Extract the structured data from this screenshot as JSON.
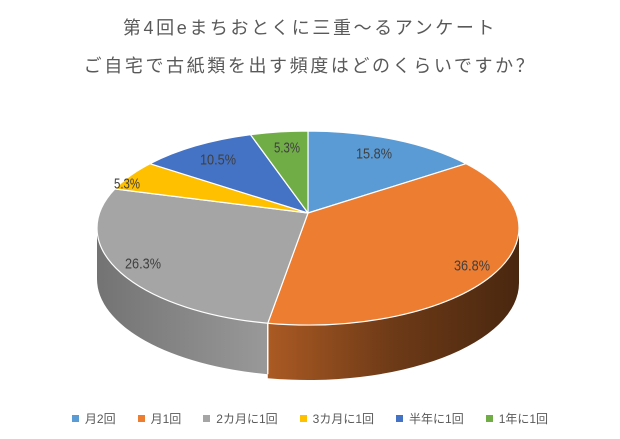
{
  "title": "第4回eまちおとくに三重～るアンケート",
  "subtitle": "ご自宅で古紙類を出す頻度はどのくらいですか？",
  "chart_data": {
    "type": "pie",
    "style": "3d",
    "categories": [
      "月2回",
      "月1回",
      "2カ月に1回",
      "3カ月に1回",
      "半年に1回",
      "1年に1回"
    ],
    "values": [
      15.8,
      36.8,
      26.3,
      5.3,
      10.5,
      5.3
    ],
    "unit": "%",
    "colors": [
      "#5B9BD5",
      "#ED7D31",
      "#A5A5A5",
      "#FFC000",
      "#4472C4",
      "#70AD47"
    ],
    "data_labels": [
      "15.8%",
      "36.8%",
      "26.3%",
      "5.3%",
      "10.5%",
      "5.3%"
    ],
    "legend_position": "bottom",
    "title_color": "#595959",
    "label_color": "#404040",
    "background": "#ffffff"
  }
}
